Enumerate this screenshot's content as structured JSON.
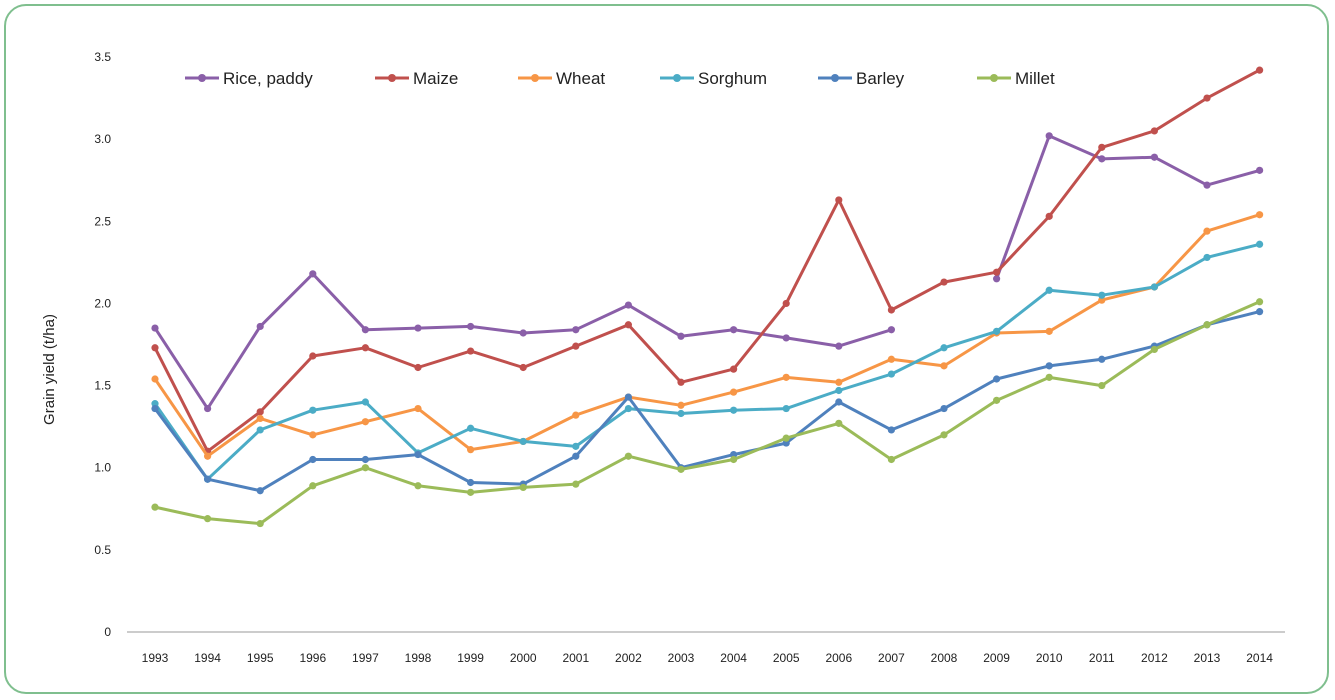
{
  "chart_data": {
    "type": "line",
    "ylabel": "Grain yield (t/ha)",
    "xlabel": "",
    "ylim": [
      0,
      3.5
    ],
    "yticks": [
      "0",
      "0.5",
      "1.0",
      "1.5",
      "2.0",
      "2.5",
      "3.0",
      "3.5"
    ],
    "categories": [
      "1993",
      "1994",
      "1995",
      "1996",
      "1997",
      "1998",
      "1999",
      "2000",
      "2001",
      "2002",
      "2003",
      "2004",
      "2005",
      "2006",
      "2007",
      "2008",
      "2009",
      "2010",
      "2011",
      "2012",
      "2013",
      "2014"
    ],
    "legend_position": "top",
    "grid": false,
    "series": [
      {
        "name": "Rice, paddy",
        "color": "#8a5fa8",
        "values": [
          1.85,
          1.36,
          1.86,
          2.18,
          1.84,
          1.85,
          1.86,
          1.82,
          1.84,
          1.99,
          1.8,
          1.84,
          1.79,
          1.74,
          1.84,
          null,
          2.15,
          3.02,
          2.88,
          2.89,
          2.72,
          2.81
        ]
      },
      {
        "name": "Maize",
        "color": "#c0504d",
        "values": [
          1.73,
          1.1,
          1.34,
          1.68,
          1.73,
          1.61,
          1.71,
          1.61,
          1.74,
          1.87,
          1.52,
          1.6,
          2.0,
          2.63,
          1.96,
          2.13,
          2.19,
          2.53,
          2.95,
          3.05,
          3.25,
          3.42
        ]
      },
      {
        "name": "Wheat",
        "color": "#f79646",
        "values": [
          1.54,
          1.07,
          1.3,
          1.2,
          1.28,
          1.36,
          1.11,
          1.16,
          1.32,
          1.43,
          1.38,
          1.46,
          1.55,
          1.52,
          1.66,
          1.62,
          1.82,
          1.83,
          2.02,
          2.1,
          2.44,
          2.54
        ]
      },
      {
        "name": "Sorghum",
        "color": "#4bacc6",
        "values": [
          1.39,
          0.93,
          1.23,
          1.35,
          1.4,
          1.09,
          1.24,
          1.16,
          1.13,
          1.36,
          1.33,
          1.35,
          1.36,
          1.47,
          1.57,
          1.73,
          1.83,
          2.08,
          2.05,
          2.1,
          2.28,
          2.36
        ]
      },
      {
        "name": "Barley",
        "color": "#4f81bd",
        "values": [
          1.36,
          0.93,
          0.86,
          1.05,
          1.05,
          1.08,
          0.91,
          0.9,
          1.07,
          1.43,
          1.0,
          1.08,
          1.15,
          1.4,
          1.23,
          1.36,
          1.54,
          1.62,
          1.66,
          1.74,
          1.87,
          1.95
        ]
      },
      {
        "name": "Millet",
        "color": "#9bbb59",
        "values": [
          0.76,
          0.69,
          0.66,
          0.89,
          1.0,
          0.89,
          0.85,
          0.88,
          0.9,
          1.07,
          0.99,
          1.05,
          1.18,
          1.27,
          1.05,
          1.2,
          1.41,
          1.55,
          1.5,
          1.72,
          1.87,
          2.01
        ]
      }
    ]
  }
}
